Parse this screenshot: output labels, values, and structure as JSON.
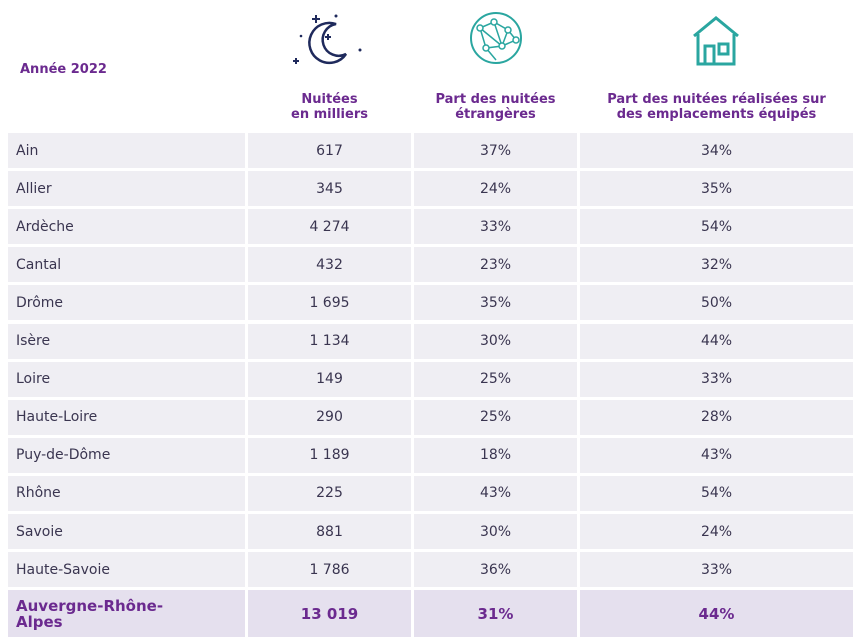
{
  "header": {
    "year": "Année 2022",
    "columns": [
      [
        "Nuitées",
        "en milliers"
      ],
      [
        "Part des nuitées",
        "étrangères"
      ],
      [
        "Part des nuitées réalisées sur",
        "des emplacements équipés"
      ]
    ]
  },
  "table": {
    "rows": [
      [
        "Ain",
        "617",
        "37%",
        "34%"
      ],
      [
        "Allier",
        "345",
        "24%",
        "35%"
      ],
      [
        "Ardèche",
        "4 274",
        "33%",
        "54%"
      ],
      [
        "Cantal",
        "432",
        "23%",
        "32%"
      ],
      [
        "Drôme",
        "1 695",
        "35%",
        "50%"
      ],
      [
        "Isère",
        "1 134",
        "30%",
        "44%"
      ],
      [
        "Loire",
        "149",
        "25%",
        "33%"
      ],
      [
        "Haute-Loire",
        "290",
        "25%",
        "28%"
      ],
      [
        "Puy-de-Dôme",
        "1 189",
        "18%",
        "43%"
      ],
      [
        "Rhône",
        "225",
        "43%",
        "54%"
      ],
      [
        "Savoie",
        "881",
        "30%",
        "24%"
      ],
      [
        "Haute-Savoie",
        "1 786",
        "36%",
        "33%"
      ]
    ],
    "total": [
      [
        "Auvergne-Rhône-",
        "Alpes"
      ],
      "13 019",
      "31%",
      "44%"
    ]
  }
}
